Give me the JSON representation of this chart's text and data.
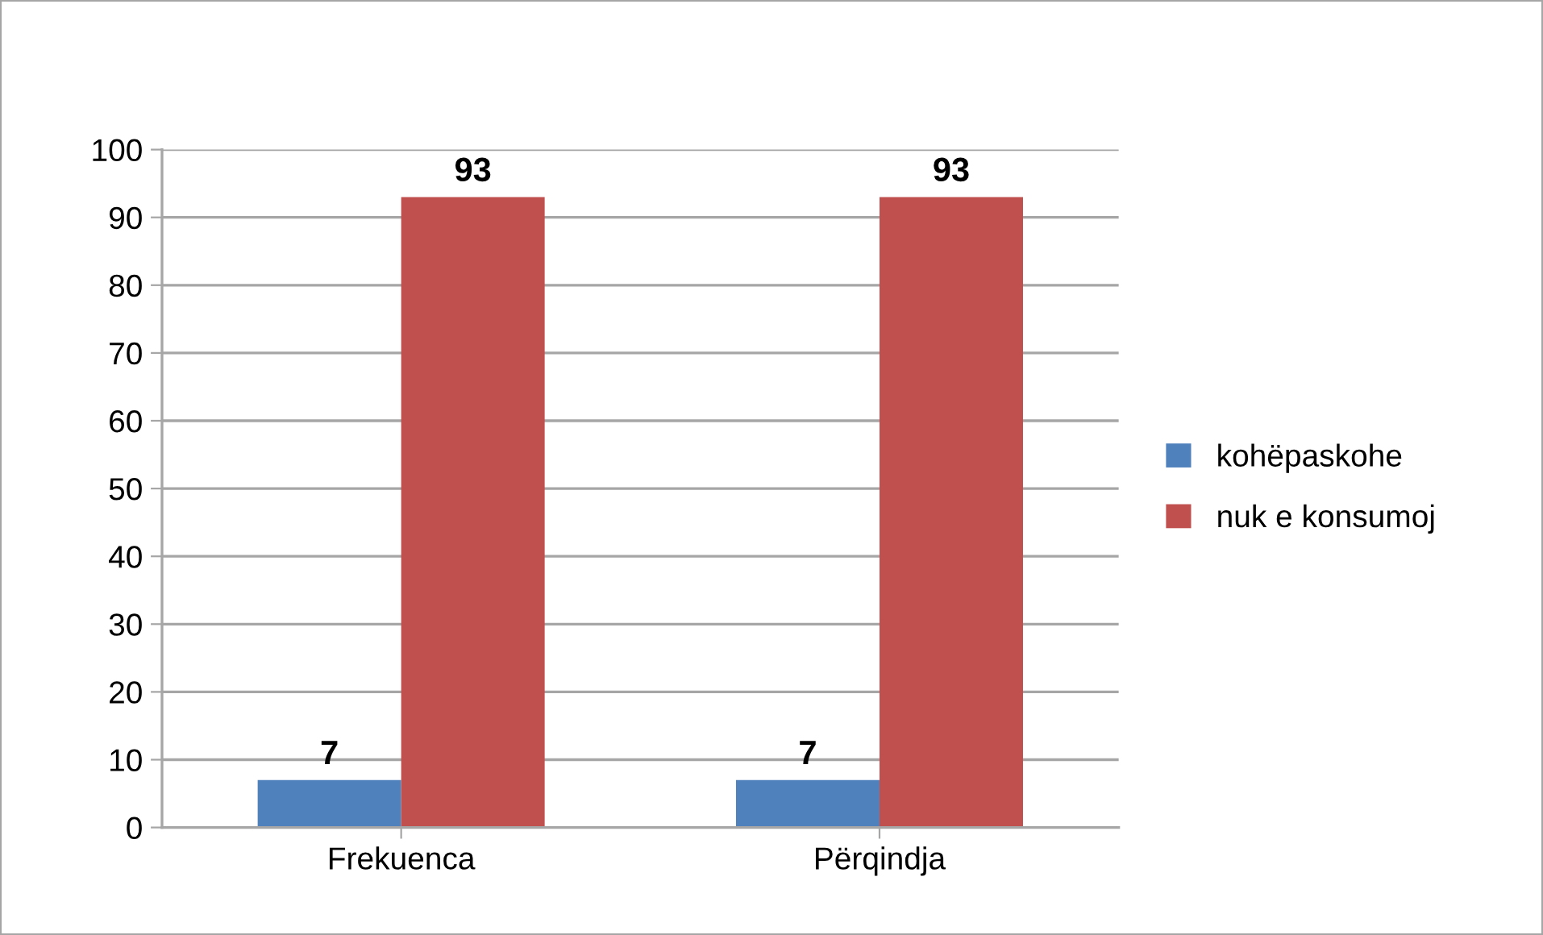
{
  "chart_data": {
    "type": "bar",
    "categories": [
      "Frekuenca",
      "Përqindja"
    ],
    "series": [
      {
        "name": "kohëpaskohe",
        "color": "#4f81bd",
        "values": [
          7,
          7
        ]
      },
      {
        "name": "nuk e konsumoj",
        "color": "#c0504d",
        "values": [
          93,
          93
        ]
      }
    ],
    "ylim": [
      0,
      100
    ],
    "yticks": [
      0,
      10,
      20,
      30,
      40,
      50,
      60,
      70,
      80,
      90,
      100
    ],
    "grid": "y",
    "legend": "right",
    "data_labels": true
  }
}
